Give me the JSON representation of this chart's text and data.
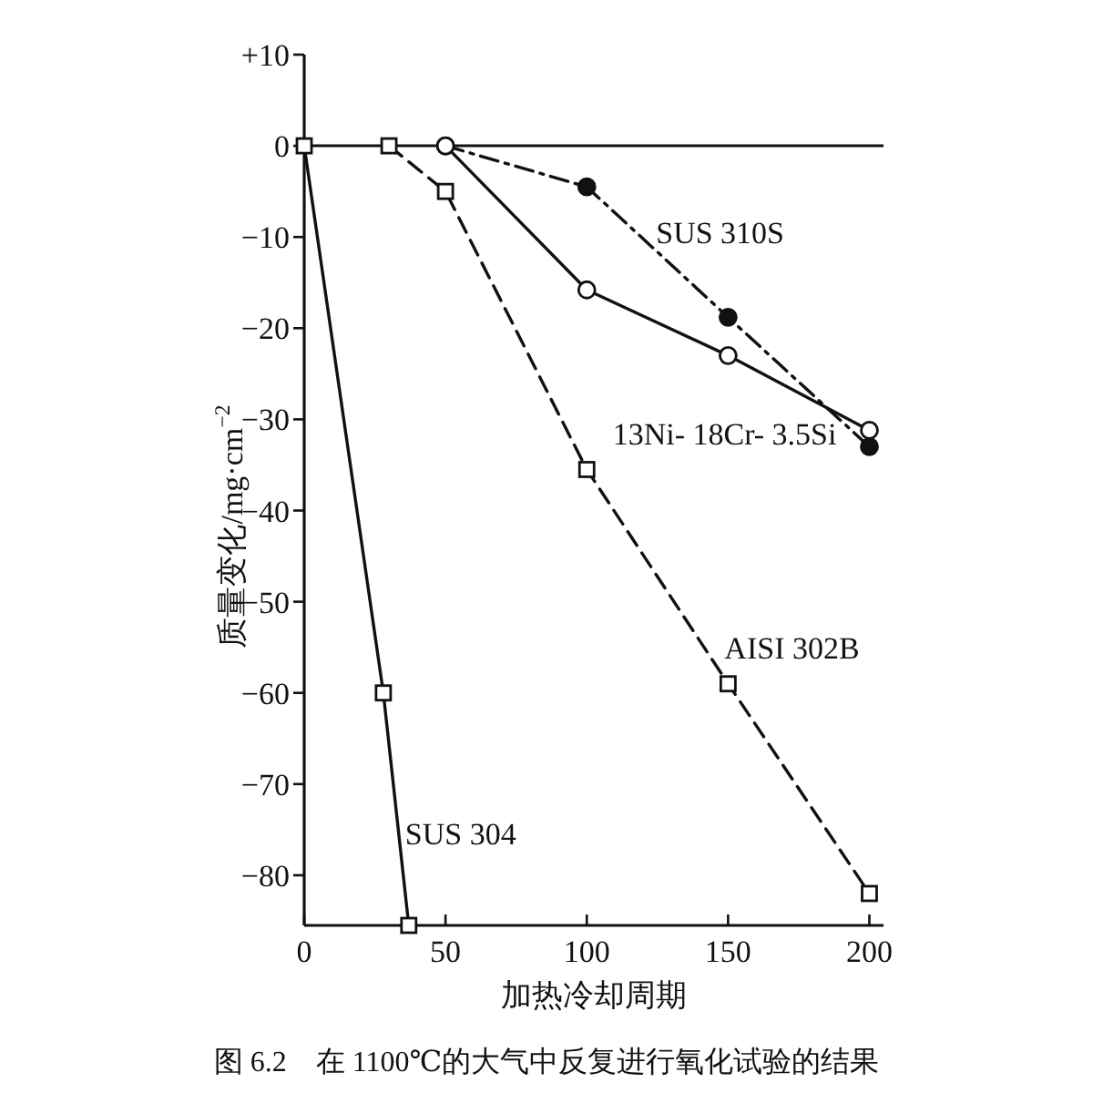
{
  "chart_data": {
    "type": "line",
    "xlabel": "加热冷却周期",
    "ylabel": "质量变化/mg·cm$^{−2}$",
    "xlim": [
      0,
      205
    ],
    "ylim": [
      -85.5,
      10
    ],
    "xticks": [
      0,
      50,
      100,
      150,
      200
    ],
    "yticks": [
      {
        "value": 10,
        "label": "+10"
      },
      0,
      -10,
      -20,
      -30,
      -40,
      -50,
      -60,
      -70,
      -80
    ],
    "grid": false,
    "ref_lines": [
      {
        "axis": "y",
        "value": 0,
        "color": "#111111",
        "line_style": "solid"
      }
    ],
    "series": [
      {
        "name": "SUS 310S",
        "color": "#111111",
        "x": [
          50,
          100,
          150,
          200
        ],
        "values": [
          0,
          -4.5,
          -18.8,
          -33
        ],
        "marker": "circle",
        "line_style": "dashdot"
      },
      {
        "name": "13Ni- 18Cr- 3.5Si",
        "color": "#111111",
        "x": [
          50,
          100,
          150,
          200
        ],
        "values": [
          0,
          -15.8,
          -23,
          -31.2
        ],
        "marker": "circle",
        "line_style": "solid"
      },
      {
        "name": "AISI 302B",
        "color": "#111111",
        "x": [
          30,
          50,
          100,
          150,
          200
        ],
        "values": [
          0,
          -5,
          -35.5,
          -59,
          -82
        ],
        "marker": "square",
        "line_style": "dashed"
      },
      {
        "name": "SUS 304",
        "color": "#111111",
        "x": [
          0,
          28,
          37
        ],
        "values": [
          0,
          -60,
          -85.5
        ],
        "marker": "square",
        "line_style": "solid"
      }
    ],
    "annotations": [
      "图 6.2　在 1100℃的大气中反复进行氧化试验的结果"
    ]
  }
}
